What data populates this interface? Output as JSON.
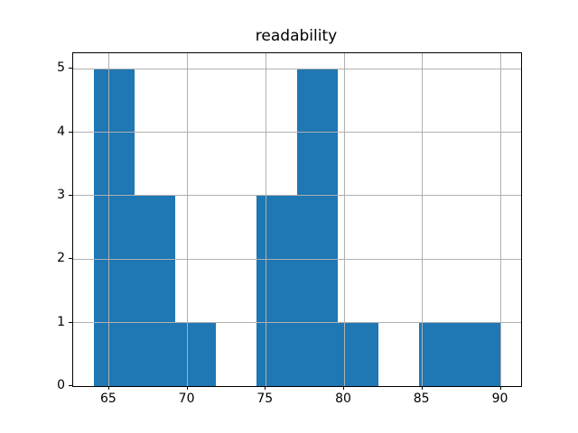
{
  "figure": {
    "background": "#ffffff"
  },
  "chart_data": {
    "type": "bar",
    "subtype": "histogram",
    "title": "readability",
    "xlabel": "",
    "ylabel": "",
    "bin_edges": [
      64.0,
      66.6,
      69.2,
      71.8,
      74.4,
      77.0,
      79.6,
      82.2,
      84.8,
      87.4,
      90.0
    ],
    "counts": [
      5,
      3,
      1,
      0,
      3,
      5,
      1,
      0,
      1,
      1
    ],
    "xticks": [
      65,
      70,
      75,
      80,
      85,
      90
    ],
    "yticks": [
      0,
      1,
      2,
      3,
      4,
      5
    ],
    "xtick_labels": [
      "65",
      "70",
      "75",
      "80",
      "85",
      "90"
    ],
    "ytick_labels": [
      "0",
      "1",
      "2",
      "3",
      "4",
      "5"
    ],
    "xlim": [
      62.7,
      91.3
    ],
    "ylim": [
      0,
      5.25
    ],
    "grid": true,
    "legend": false,
    "bar_color": "#1f77b4",
    "grid_color": "#b0b0b0",
    "spine_color": "#000000",
    "text_color": "#000000"
  }
}
